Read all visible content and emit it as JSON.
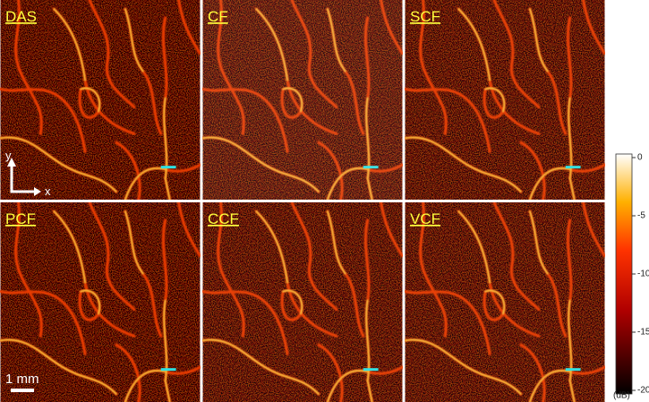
{
  "panels": [
    {
      "label": "DAS"
    },
    {
      "label": "CF"
    },
    {
      "label": "SCF"
    },
    {
      "label": "PCF"
    },
    {
      "label": "CCF"
    },
    {
      "label": "VCF"
    }
  ],
  "axes": {
    "y": "y",
    "x": "x"
  },
  "scale_bar": "1 mm",
  "colorbar": {
    "ticks": [
      "0",
      "-5",
      "-10",
      "-15",
      "-20"
    ],
    "unit": "(dB)"
  }
}
